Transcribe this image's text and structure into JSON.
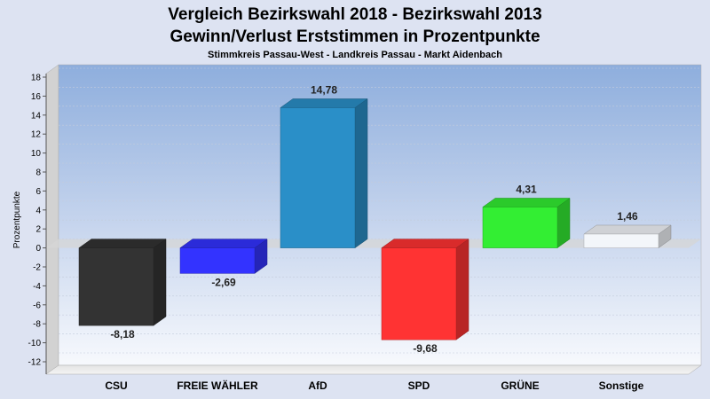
{
  "chart_data": {
    "type": "bar",
    "title": "Vergleich Bezirkswahl 2018 - Bezirkswahl 2013",
    "subtitle": "Gewinn/Verlust Erststimmen in Prozentpunkte",
    "caption": "Stimmkreis Passau-West - Landkreis Passau - Markt Aidenbach",
    "ylabel": "Prozentpunkte",
    "xlabel": "",
    "ylim": [
      -13,
      18
    ],
    "yticks": [
      18,
      16,
      14,
      12,
      10,
      8,
      6,
      4,
      2,
      0,
      -2,
      -4,
      -6,
      -8,
      -10,
      -12
    ],
    "categories": [
      "CSU",
      "FREIE WÄHLER",
      "AfD",
      "SPD",
      "GRÜNE",
      "Sonstige"
    ],
    "values": [
      -8.18,
      -2.69,
      14.78,
      -9.68,
      4.31,
      1.46
    ],
    "value_labels": [
      "-8,18",
      "-2,69",
      "14,78",
      "-9,68",
      "4,31",
      "1,46"
    ],
    "colors": [
      "#333333",
      "#3333ff",
      "#2a8fc8",
      "#ff3333",
      "#33ee33",
      "#f3f6fa"
    ],
    "grid": true,
    "legend": "none"
  }
}
